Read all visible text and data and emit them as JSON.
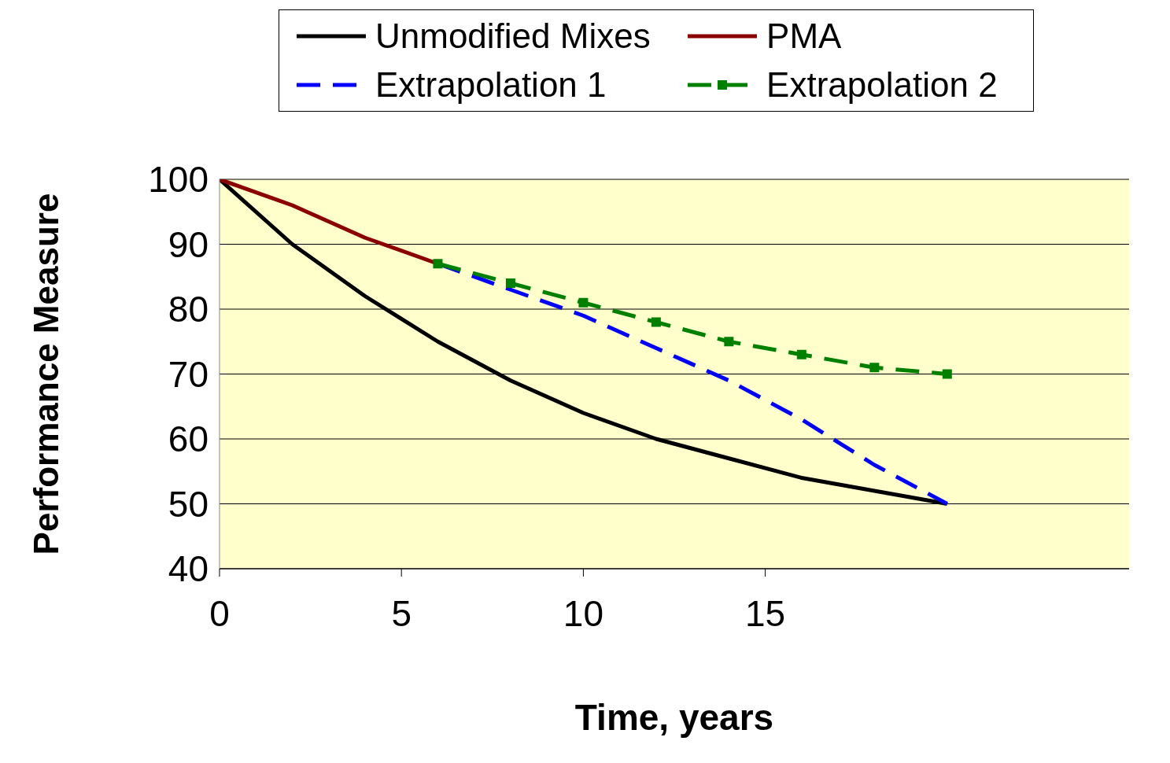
{
  "chart_data": {
    "type": "line",
    "xlabel": "Time, years",
    "ylabel": "Performance Measure",
    "xlim": [
      0,
      25
    ],
    "xticks": [
      0,
      5,
      10,
      15
    ],
    "ylim": [
      40,
      100
    ],
    "yticks": [
      40,
      50,
      60,
      70,
      80,
      90,
      100
    ],
    "grid": "y",
    "legend": "top",
    "series": [
      {
        "name": "Unmodified Mixes",
        "color": "#000000",
        "x": [
          0,
          2,
          4,
          6,
          8,
          10,
          12,
          14,
          16,
          18,
          20
        ],
        "values": [
          100,
          90,
          82,
          75,
          69,
          64,
          60,
          57,
          54,
          52,
          50
        ],
        "line_style": "solid",
        "marker": "none"
      },
      {
        "name": "PMA",
        "color": "#8b0000",
        "x": [
          0,
          2,
          4,
          6
        ],
        "values": [
          100,
          96,
          91,
          87
        ],
        "line_style": "solid",
        "marker": "none"
      },
      {
        "name": "Extrapolation 1",
        "color": "#0000ff",
        "x": [
          6,
          8,
          10,
          12,
          14,
          16,
          18,
          20
        ],
        "values": [
          87,
          83,
          79,
          74,
          69,
          63,
          56,
          50
        ],
        "line_style": "dashed",
        "marker": "none"
      },
      {
        "name": "Extrapolation 2",
        "color": "#008000",
        "x": [
          6,
          8,
          10,
          12,
          14,
          16,
          18,
          20
        ],
        "values": [
          87,
          84,
          81,
          78,
          75,
          73,
          71,
          70
        ],
        "line_style": "dashed",
        "marker": "square"
      }
    ]
  }
}
